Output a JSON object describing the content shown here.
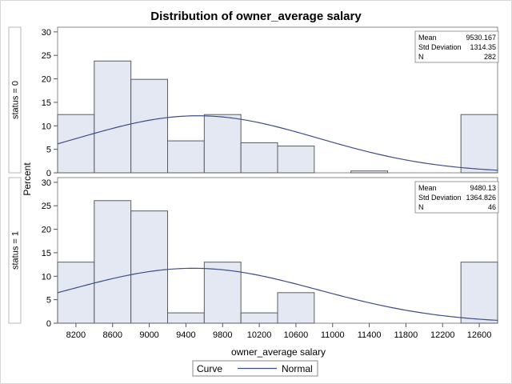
{
  "chart_data": {
    "type": "bar",
    "title": "Distribution of owner_average salary",
    "xlabel": "owner_average salary",
    "ylabel": "Percent",
    "x_ticks": [
      8200,
      8600,
      9000,
      9400,
      9800,
      10200,
      10600,
      11000,
      11400,
      11800,
      12200,
      12600
    ],
    "xlim": [
      8000,
      12800
    ],
    "ylim": [
      0,
      31
    ],
    "y_ticks": [
      0,
      5,
      10,
      15,
      20,
      25,
      30
    ],
    "bin_width": 400,
    "bin_edges": [
      8000,
      8400,
      8800,
      9200,
      9600,
      10000,
      10400,
      10800,
      11200,
      11600,
      12000,
      12400,
      12800
    ],
    "panels": [
      {
        "label": "status = 0",
        "values": [
          12.4,
          23.8,
          19.9,
          6.8,
          12.4,
          6.4,
          5.7,
          0,
          0.4,
          0,
          0,
          12.4
        ],
        "stats": [
          {
            "label": "Mean",
            "value": "9530.167"
          },
          {
            "label": "Std Deviation",
            "value": "1314.35"
          },
          {
            "label": "N",
            "value": "282"
          }
        ],
        "curve": {
          "name": "Normal",
          "mean": 9530.167,
          "sd": 1314.35
        }
      },
      {
        "label": "status = 1",
        "values": [
          13.0,
          26.1,
          23.9,
          2.2,
          13.0,
          2.2,
          6.5,
          0,
          0,
          0,
          0,
          13.0
        ],
        "stats": [
          {
            "label": "Mean",
            "value": "9480.13"
          },
          {
            "label": "Std Deviation",
            "value": "1364.826"
          },
          {
            "label": "N",
            "value": "46"
          }
        ],
        "curve": {
          "name": "Normal",
          "mean": 9480.13,
          "sd": 1364.826
        }
      }
    ],
    "legend": {
      "title": "Curve",
      "entries": [
        {
          "name": "Normal"
        }
      ],
      "position": "bottom"
    },
    "grid": false,
    "colors": {
      "bar_fill": "#e3e8f2",
      "bar_stroke": "#5c5c5c",
      "curve": "#3c4d8a",
      "frame": "#8a8a8a"
    }
  }
}
